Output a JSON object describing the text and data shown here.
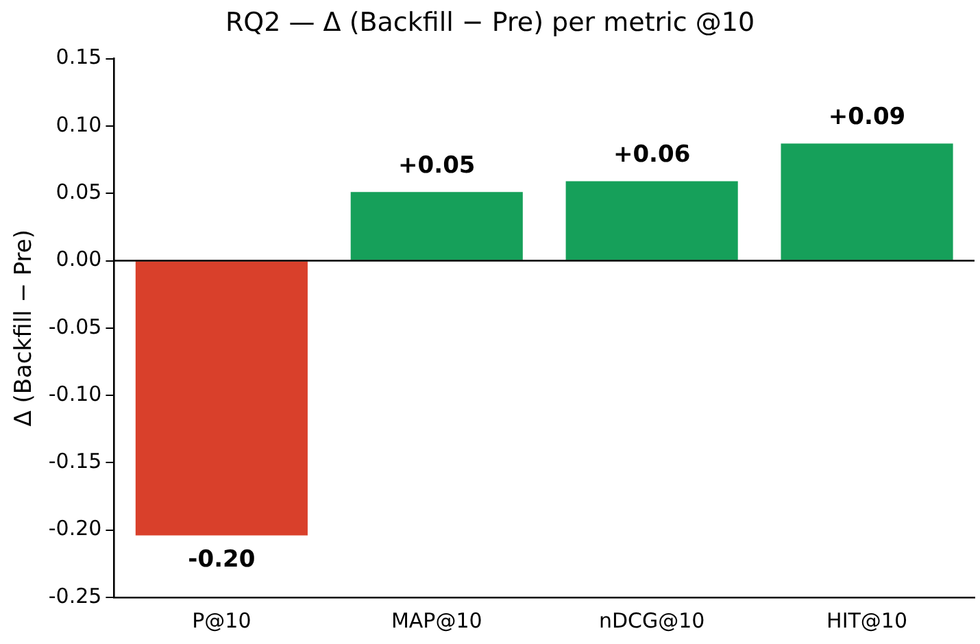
{
  "chart_data": {
    "type": "bar",
    "title": "RQ2 — Δ (Backfill − Pre) per metric @10",
    "ylabel": "Δ (Backfill − Pre)",
    "categories": [
      "P@10",
      "MAP@10",
      "nDCG@10",
      "HIT@10"
    ],
    "values": [
      -0.204,
      0.051,
      0.059,
      0.087
    ],
    "colors": [
      "#d9402b",
      "#16a05a",
      "#16a05a",
      "#16a05a"
    ],
    "value_labels": [
      "-0.20",
      "+0.05",
      "+0.06",
      "+0.09"
    ],
    "ylim": [
      -0.25,
      0.15
    ],
    "yticks": [
      {
        "value": -0.25,
        "label": "-0.25"
      },
      {
        "value": -0.2,
        "label": "-0.20"
      },
      {
        "value": -0.15,
        "label": "-0.15"
      },
      {
        "value": -0.1,
        "label": "-0.10"
      },
      {
        "value": -0.05,
        "label": "-0.05"
      },
      {
        "value": 0,
        "label": "0.00"
      },
      {
        "value": 0.05,
        "label": "0.05"
      },
      {
        "value": 0.1,
        "label": "0.10"
      },
      {
        "value": 0.15,
        "label": "0.15"
      }
    ],
    "ref_lines": [
      {
        "axis": "y",
        "value": 0,
        "color": "#000000"
      }
    ],
    "grid": false,
    "legend": false
  }
}
